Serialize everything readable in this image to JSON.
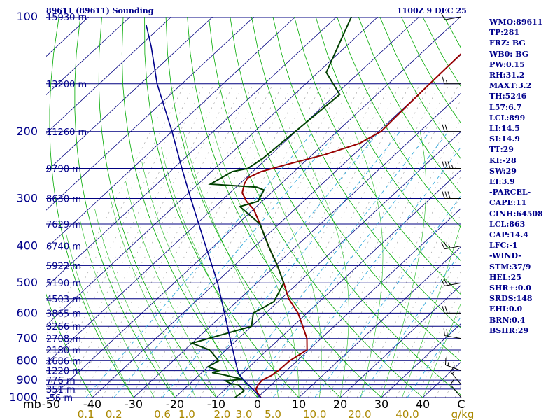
{
  "chart_data": {
    "type": "skew-t",
    "title": "89611 (89611) Sounding",
    "valid_time": "1100Z  9 DEC 25",
    "pressure_levels": [
      100,
      200,
      300,
      400,
      500,
      600,
      700,
      800,
      900,
      1000
    ],
    "pressure_axis_label": "mb",
    "temperature_ticks": [
      -50,
      -40,
      -30,
      -20,
      -10,
      0,
      10,
      20,
      30,
      40
    ],
    "temperature_tick_labels": [
      "-50",
      "-40",
      "-30",
      "-20",
      "-10",
      "0",
      "10",
      "20",
      "30",
      "40"
    ],
    "temperature_corner_label": "C",
    "mixing_ratio_ticks": [
      0.1,
      0.2,
      0.6,
      1.0,
      2.0,
      3.0,
      5.0,
      10.0,
      20.0,
      40.0
    ],
    "mixing_ratio_labels": [
      "0.1",
      "0.2",
      "0.6",
      "1.0",
      "2.0",
      "3.0",
      "5.0",
      "10.0",
      "20.0",
      "40.0"
    ],
    "mixing_ratio_unit": "g/kg",
    "height_labels": [
      {
        "p": 100,
        "label": "15930 m"
      },
      {
        "p": 150,
        "label": "13200 m"
      },
      {
        "p": 200,
        "label": "11260 m"
      },
      {
        "p": 250,
        "label": "9790 m"
      },
      {
        "p": 300,
        "label": "8630 m"
      },
      {
        "p": 350,
        "label": "7629 m"
      },
      {
        "p": 400,
        "label": "6740 m"
      },
      {
        "p": 450,
        "label": "5922 m"
      },
      {
        "p": 500,
        "label": "5190 m"
      },
      {
        "p": 550,
        "label": "4503 m"
      },
      {
        "p": 600,
        "label": "3865 m"
      },
      {
        "p": 650,
        "label": "3266 m"
      },
      {
        "p": 700,
        "label": "2708 m"
      },
      {
        "p": 750,
        "label": "2180 m"
      },
      {
        "p": 800,
        "label": "1686 m"
      },
      {
        "p": 850,
        "label": "1220 m"
      },
      {
        "p": 900,
        "label": "776 m"
      },
      {
        "p": 950,
        "label": "351 m"
      },
      {
        "p": 1000,
        "label": "-56 m"
      }
    ],
    "series": [
      {
        "name": "temperature",
        "color": "#990000",
        "points": [
          {
            "p": 1000,
            "t": 0.8
          },
          {
            "p": 975,
            "t": -1.0
          },
          {
            "p": 950,
            "t": -2.6
          },
          {
            "p": 925,
            "t": -3.2
          },
          {
            "p": 900,
            "t": -3.4
          },
          {
            "p": 875,
            "t": -2.4
          },
          {
            "p": 850,
            "t": -2.0
          },
          {
            "p": 800,
            "t": -1.8
          },
          {
            "p": 750,
            "t": -0.4
          },
          {
            "p": 700,
            "t": -3.4
          },
          {
            "p": 650,
            "t": -7.6
          },
          {
            "p": 600,
            "t": -12.2
          },
          {
            "p": 550,
            "t": -18.2
          },
          {
            "p": 500,
            "t": -23.5
          },
          {
            "p": 450,
            "t": -29.6
          },
          {
            "p": 400,
            "t": -36.8
          },
          {
            "p": 350,
            "t": -44.6
          },
          {
            "p": 320,
            "t": -50.0
          },
          {
            "p": 305,
            "t": -53.8
          },
          {
            "p": 290,
            "t": -57.0
          },
          {
            "p": 275,
            "t": -58.8
          },
          {
            "p": 265,
            "t": -59.6
          },
          {
            "p": 255,
            "t": -58.0
          },
          {
            "p": 245,
            "t": -54.0
          },
          {
            "p": 230,
            "t": -47.0
          },
          {
            "p": 215,
            "t": -41.5
          },
          {
            "p": 200,
            "t": -39.4
          },
          {
            "p": 185,
            "t": -39.6
          },
          {
            "p": 170,
            "t": -39.8
          },
          {
            "p": 150,
            "t": -40.0
          },
          {
            "p": 125,
            "t": -40.2
          },
          {
            "p": 100,
            "t": -41.0
          }
        ]
      },
      {
        "name": "dewpoint",
        "color": "#004000",
        "points": [
          {
            "p": 1000,
            "t": -5.5
          },
          {
            "p": 960,
            "t": -5.0
          },
          {
            "p": 930,
            "t": -7.6
          },
          {
            "p": 925,
            "t": -8.0
          },
          {
            "p": 920,
            "t": -10.0
          },
          {
            "p": 905,
            "t": -12.0
          },
          {
            "p": 895,
            "t": -8.5
          },
          {
            "p": 870,
            "t": -14.5
          },
          {
            "p": 860,
            "t": -17.5
          },
          {
            "p": 850,
            "t": -16.3
          },
          {
            "p": 830,
            "t": -20.0
          },
          {
            "p": 800,
            "t": -19.0
          },
          {
            "p": 750,
            "t": -24.0
          },
          {
            "p": 720,
            "t": -30.0
          },
          {
            "p": 650,
            "t": -20.0
          },
          {
            "p": 600,
            "t": -23.0
          },
          {
            "p": 560,
            "t": -21.0
          },
          {
            "p": 500,
            "t": -23.5
          },
          {
            "p": 450,
            "t": -29.6
          },
          {
            "p": 400,
            "t": -36.8
          },
          {
            "p": 350,
            "t": -44.6
          },
          {
            "p": 315,
            "t": -54.0
          },
          {
            "p": 305,
            "t": -51.0
          },
          {
            "p": 285,
            "t": -52.5
          },
          {
            "p": 280,
            "t": -55.0
          },
          {
            "p": 275,
            "t": -67.0
          },
          {
            "p": 255,
            "t": -65.0
          },
          {
            "p": 250,
            "t": -62.0
          },
          {
            "p": 235,
            "t": -61.0
          },
          {
            "p": 160,
            "t": -59.0
          },
          {
            "p": 140,
            "t": -68.0
          },
          {
            "p": 100,
            "t": -76.4
          }
        ]
      },
      {
        "name": "parcel",
        "color": "#00008b",
        "points": [
          {
            "p": 1000,
            "t": 0.8
          },
          {
            "p": 950,
            "t": -3.4
          },
          {
            "p": 900,
            "t": -7.9
          },
          {
            "p": 863,
            "t": -11.0
          },
          {
            "p": 800,
            "t": -15.0
          },
          {
            "p": 700,
            "t": -22.0
          },
          {
            "p": 600,
            "t": -30.0
          },
          {
            "p": 500,
            "t": -39.5
          },
          {
            "p": 400,
            "t": -52.0
          },
          {
            "p": 300,
            "t": -68.0
          },
          {
            "p": 250,
            "t": -78.0
          },
          {
            "p": 200,
            "t": -90.0
          },
          {
            "p": 150,
            "t": -106.0
          },
          {
            "p": 120,
            "t": -117.0
          },
          {
            "p": 105,
            "t": -124.0
          }
        ]
      }
    ],
    "wind_barbs": [
      {
        "p": 1000,
        "dir": 320,
        "spd": 10
      },
      {
        "p": 925,
        "dir": 320,
        "spd": 15
      },
      {
        "p": 850,
        "dir": 290,
        "spd": 15
      },
      {
        "p": 700,
        "dir": 280,
        "spd": 20
      },
      {
        "p": 600,
        "dir": 270,
        "spd": 20
      },
      {
        "p": 500,
        "dir": 260,
        "spd": 25
      },
      {
        "p": 400,
        "dir": 260,
        "spd": 25
      },
      {
        "p": 300,
        "dir": 270,
        "spd": 30
      },
      {
        "p": 250,
        "dir": 270,
        "spd": 35
      },
      {
        "p": 200,
        "dir": 270,
        "spd": 20
      },
      {
        "p": 150,
        "dir": 270,
        "spd": 15
      },
      {
        "p": 100,
        "dir": 260,
        "spd": 10
      }
    ]
  },
  "indices": [
    "WMO:89611",
    "TP:281",
    "FRZ: BG",
    "WB0: BG",
    "PW:0.15",
    "RH:31.2",
    "MAXT:3.2",
    "TH:5246",
    "L57:6.7",
    "LCL:899",
    "LI:14.5",
    "SI:14.9",
    "TT:29",
    "KI:-28",
    "SW:29",
    "EI:3.9",
    "-PARCEL-",
    "CAPE:11",
    "CINH:64508",
    "LCL:863",
    "CAP:14.4",
    "LFC:-1",
    "-WIND-",
    "STM:37/9",
    "HEL:25",
    "SHR+:0.0",
    "SRDS:148",
    "EHI:0.0",
    "BRN:0.4",
    "BSHR:29"
  ],
  "colors": {
    "isobar": "#000080",
    "isotherm": "#000080",
    "dry_adiabat": "#00aa00",
    "moist_adiabat": "#22bb22",
    "mixing_ratio": "#33aadd",
    "hatched": "#999999",
    "label_blue": "#00008b",
    "mixing_label": "#aa8800",
    "temp_label": "#000000"
  }
}
